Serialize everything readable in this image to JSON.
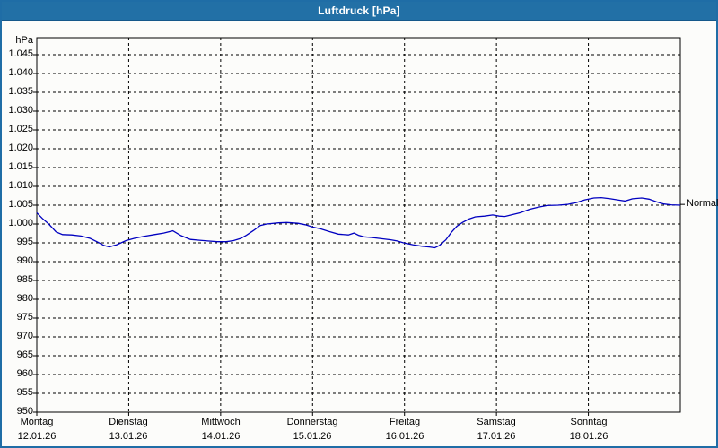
{
  "window": {
    "title": "Luftdruck [hPa]"
  },
  "colors": {
    "titlebar": "#2270a6",
    "window_border": "#1f6da6",
    "background": "#fcfcfa",
    "curve": "#0000c0",
    "grid": "#000000"
  },
  "chart_data": {
    "type": "line",
    "title": "Luftdruck [hPa]",
    "y_unit_label": "hPa",
    "ylim": [
      950,
      1045
    ],
    "ytick_step": 5,
    "yticks": [
      "1.045",
      "1.040",
      "1.035",
      "1.030",
      "1.025",
      "1.020",
      "1.015",
      "1.010",
      "1.005",
      "1.000",
      "995",
      "990",
      "985",
      "980",
      "975",
      "970",
      "965",
      "960",
      "955",
      "950"
    ],
    "grid": "dashed",
    "legend_position": "none",
    "x_days": [
      {
        "name": "Montag",
        "date": "12.01.26"
      },
      {
        "name": "Dienstag",
        "date": "13.01.26"
      },
      {
        "name": "Mittwoch",
        "date": "14.01.26"
      },
      {
        "name": "Donnerstag",
        "date": "15.01.26"
      },
      {
        "name": "Freitag",
        "date": "16.01.26"
      },
      {
        "name": "Samstag",
        "date": "17.01.26"
      },
      {
        "name": "Sonntag",
        "date": "18.01.26"
      }
    ],
    "normal_marker": {
      "label": "Normal",
      "value": 1005.2
    },
    "series": [
      {
        "name": "Luftdruck",
        "x_day_offset": [
          0.0,
          0.06,
          0.13,
          0.21,
          0.28,
          0.38,
          0.48,
          0.58,
          0.67,
          0.73,
          0.79,
          0.87,
          0.97,
          1.06,
          1.16,
          1.28,
          1.38,
          1.48,
          1.57,
          1.67,
          1.77,
          1.86,
          1.96,
          2.06,
          2.14,
          2.22,
          2.28,
          2.36,
          2.43,
          2.5,
          2.63,
          2.72,
          2.84,
          2.92,
          3.0,
          3.09,
          3.18,
          3.28,
          3.39,
          3.45,
          3.5,
          3.56,
          3.65,
          3.75,
          3.85,
          3.92,
          3.99,
          4.09,
          4.19,
          4.27,
          4.33,
          4.38,
          4.45,
          4.51,
          4.57,
          4.63,
          4.7,
          4.77,
          4.87,
          4.96,
          5.03,
          5.09,
          5.16,
          5.26,
          5.36,
          5.46,
          5.55,
          5.67,
          5.77,
          5.87,
          5.96,
          6.06,
          6.14,
          6.24,
          6.34,
          6.4,
          6.48,
          6.58,
          6.66,
          6.74,
          6.82,
          6.9,
          7.0
        ],
        "values": [
          1003.0,
          1001.5,
          1000.0,
          997.9,
          997.2,
          997.1,
          996.8,
          996.2,
          995.1,
          994.3,
          993.9,
          994.5,
          995.6,
          996.2,
          996.7,
          997.2,
          997.6,
          998.2,
          996.9,
          995.9,
          995.7,
          995.5,
          995.3,
          995.3,
          995.6,
          996.2,
          997.0,
          998.3,
          999.6,
          1000.0,
          1000.3,
          1000.4,
          1000.2,
          999.8,
          999.2,
          998.7,
          998.0,
          997.3,
          997.1,
          997.6,
          997.0,
          996.6,
          996.4,
          996.1,
          995.8,
          995.5,
          995.0,
          994.5,
          994.1,
          993.9,
          993.7,
          994.3,
          995.8,
          997.8,
          999.4,
          1000.4,
          1001.3,
          1001.9,
          1002.1,
          1002.4,
          1002.1,
          1002.0,
          1002.4,
          1003.0,
          1003.9,
          1004.5,
          1004.9,
          1005.0,
          1005.2,
          1005.7,
          1006.4,
          1006.9,
          1007.0,
          1006.7,
          1006.3,
          1006.1,
          1006.7,
          1006.9,
          1006.6,
          1005.9,
          1005.3,
          1005.1,
          1005.0
        ]
      }
    ]
  }
}
